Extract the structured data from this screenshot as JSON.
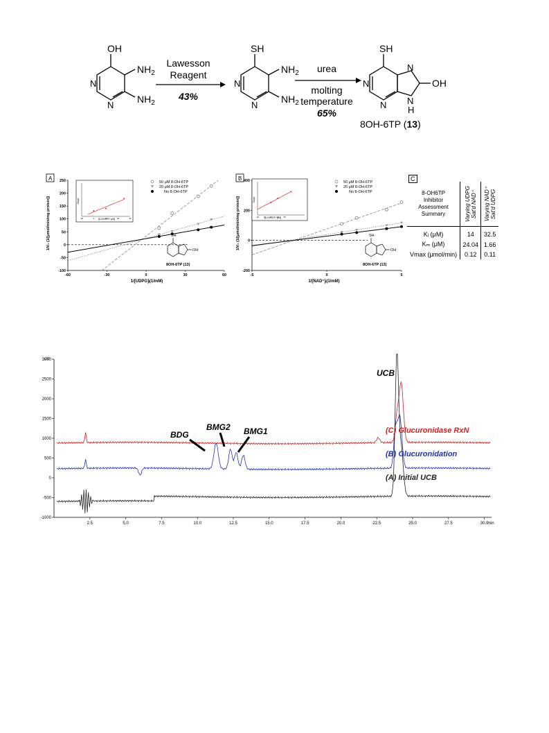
{
  "scheme": {
    "compound1_substituents": {
      "top": "OH",
      "right_top": "NH2",
      "right_bottom": "NH2",
      "ring_n": "N"
    },
    "compound2_substituents": {
      "top": "SH",
      "right_top": "NH2",
      "right_bottom": "NH2",
      "ring_n": "N"
    },
    "compound3_substituents": {
      "top": "SH",
      "right": "OH",
      "nh": "N\nH"
    },
    "step1_reagent_line1": "Lawesson",
    "step1_reagent_line2": "Reagent",
    "step1_yield": "43%",
    "step2_reagent": "urea",
    "step2_condition_line1": "molting",
    "step2_condition_line2": "temperature",
    "step2_yield": "65%",
    "product_name": "8OH-6TP (",
    "product_number": "13",
    "product_close": ")"
  },
  "panelA": {
    "tag": "A",
    "ylabel": "1/V₀ (1/[μmol/min/mg protein])",
    "xlabel": "1/[UDPG]ᵢ(1/mM)",
    "legend": [
      "50 μM 8-OH-6TP",
      "20 μM 8-OH-6TP",
      "No 8-OH-6TP"
    ],
    "molecule_label": "8OH-6TP (13)",
    "inset_xlabel": "[8-OH-6TP, μM]",
    "inset_ylabel": "Slope",
    "sh": "SH",
    "oh": "OH"
  },
  "panelB": {
    "tag": "B",
    "ylabel": "1/V₀ (1/[μmol/min/mg protein])",
    "xlabel": "1/[NAD⁺]ᵢ(1/mM)",
    "legend": [
      "50 μM 8-OH-6TP",
      "20 μM 8-OH-6TP",
      "No 8-OH-6TP"
    ],
    "molecule_label": "8OH-6TP (13)",
    "inset_xlabel": "[8-OH-6TP, μM]",
    "inset_ylabel": "Slope",
    "sh": "SH",
    "oh": "OH"
  },
  "panelC": {
    "tag": "C",
    "header_line1": "8-OH6TP",
    "header_line2": "Inhibitor",
    "header_line3": "Assessment",
    "header_line4": "Summary",
    "col1_line1": "Varying UDPG",
    "col1_line2": "Sat'd NAD⁺",
    "col2_line1": "Varying NAD⁺",
    "col2_line2": "Sat'd UDPG",
    "rows": [
      {
        "label": "Kᵢ (μM)",
        "v1": "14",
        "v2": "32.5"
      },
      {
        "label": "Kₘ (μM)",
        "v1": "24.04",
        "v2": "1.66"
      },
      {
        "label": "Vmax (μmol/min)",
        "v1": "0.12",
        "v2": "0.11"
      }
    ]
  },
  "chart_data": [
    {
      "type": "line",
      "xlabel": "1/[UDPG]ᵢ(1/mM)",
      "ylabel": "1/V₀ (1/[μmol/min/mg protein])",
      "xlim": [
        -60,
        60
      ],
      "ylim": [
        -100,
        250
      ],
      "xticks": [
        -60,
        -30,
        0,
        30,
        60
      ],
      "yticks": [
        -100,
        -50,
        0,
        50,
        100,
        150,
        200,
        250
      ],
      "series": [
        {
          "name": "50 μM 8-OH-6TP",
          "x": [
            10,
            20,
            40,
            50
          ],
          "y": [
            65,
            122,
            188,
            228
          ],
          "color": "#888888"
        },
        {
          "name": "20 μM 8-OH-6TP",
          "x": [
            10,
            20,
            40,
            50
          ],
          "y": [
            40,
            52,
            80,
            98
          ],
          "color": "#888888"
        },
        {
          "name": "No 8-OH-6TP",
          "x": [
            10,
            20,
            40,
            50
          ],
          "y": [
            32,
            42,
            58,
            68
          ],
          "color": "#000000"
        }
      ],
      "inset": {
        "type": "scatter",
        "xlim": [
          -20,
          60
        ],
        "ylim": [
          0,
          6
        ],
        "x": [
          0,
          20,
          50
        ],
        "y": [
          1.0,
          1.4,
          3.2
        ],
        "xticks": [
          -20,
          0,
          20,
          40,
          60
        ]
      }
    },
    {
      "type": "line",
      "xlabel": "1/[NAD⁺]ᵢ(1/mM)",
      "ylabel": "1/V₀ (1/[μmol/min/mg protein])",
      "xlim": [
        -5,
        5
      ],
      "ylim": [
        -200,
        400
      ],
      "xticks": [
        -5,
        0,
        5
      ],
      "yticks": [
        -200,
        0,
        200,
        400
      ],
      "series": [
        {
          "name": "50 μM 8-OH-6TP",
          "x": [
            1,
            2,
            4,
            5
          ],
          "y": [
            110,
            150,
            205,
            255
          ],
          "color": "#888888"
        },
        {
          "name": "20 μM 8-OH-6TP",
          "x": [
            1,
            2,
            4,
            5
          ],
          "y": [
            55,
            70,
            100,
            118
          ],
          "color": "#888888"
        },
        {
          "name": "No 8-OH-6TP",
          "x": [
            1,
            2,
            4,
            5
          ],
          "y": [
            42,
            52,
            78,
            92
          ],
          "color": "#000000"
        }
      ],
      "inset": {
        "type": "scatter",
        "xlim": [
          -10,
          60
        ],
        "ylim": [
          0,
          40
        ],
        "x": [
          10,
          20,
          40
        ],
        "y": [
          15,
          20,
          28
        ],
        "xticks": [
          -10,
          0,
          10,
          20,
          30
        ]
      }
    },
    {
      "type": "line",
      "xlabel": "min",
      "ylabel": "uV",
      "xlim": [
        0,
        30.5
      ],
      "ylim": [
        -1000,
        3000
      ],
      "yticks": [
        -1000,
        -500,
        0,
        500,
        1000,
        1500,
        2000,
        2500,
        3000
      ],
      "xticks": [
        2.5,
        5.0,
        7.5,
        10.0,
        12.5,
        15.0,
        17.5,
        20.0,
        22.5,
        25.0,
        27.5,
        30.0
      ],
      "series": [
        {
          "name": "(C) Glucuronidase RxN",
          "color": "#cc2222",
          "baseline": 880
        },
        {
          "name": "(B) Glucuronidation",
          "color": "#2233aa",
          "baseline": 230
        },
        {
          "name": "(A) Initial UCB",
          "color": "#222222",
          "baseline": -600
        }
      ],
      "annotations": [
        "UCB",
        "BDG",
        "BMG2",
        "BMG1"
      ]
    }
  ]
}
